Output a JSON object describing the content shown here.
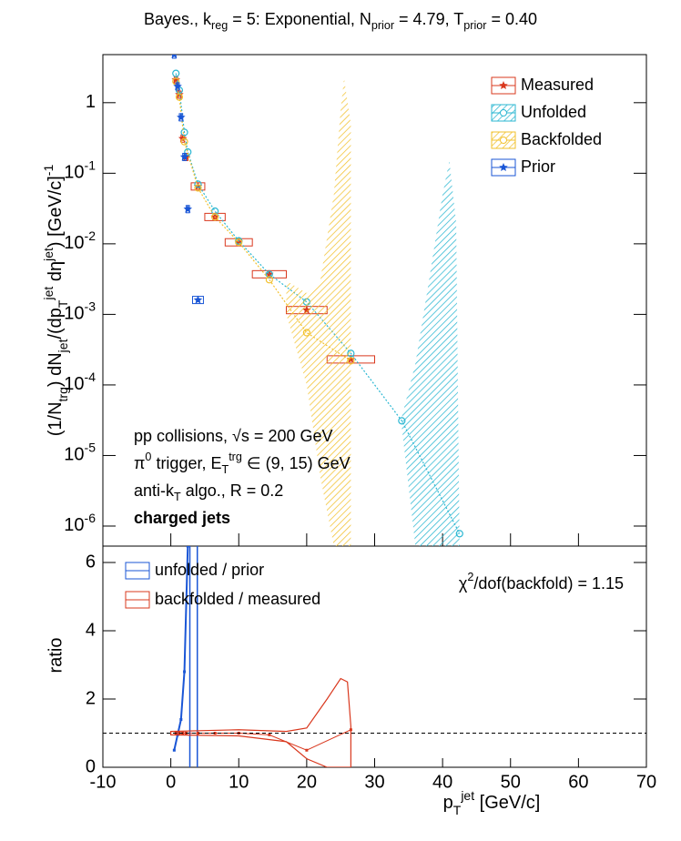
{
  "title_parts": [
    {
      "t": "Bayes., k"
    },
    {
      "t": "reg",
      "s": "sub"
    },
    {
      "t": " = 5: Exponential, N"
    },
    {
      "t": "prior",
      "s": "sub"
    },
    {
      "t": " = 4.79, T"
    },
    {
      "t": "prior",
      "s": "sub"
    },
    {
      "t": " = 0.40"
    }
  ],
  "chart_data": [
    {
      "type": "line",
      "y_scale": "log",
      "xlim": [
        -10,
        70
      ],
      "ylim": [
        5.2e-07,
        4.8
      ],
      "yticks": [
        {
          "value": 1e-06,
          "label": "10",
          "exp": "-6"
        },
        {
          "value": 1e-05,
          "label": "10",
          "exp": "-5"
        },
        {
          "value": 0.0001,
          "label": "10",
          "exp": "-4"
        },
        {
          "value": 0.001,
          "label": "10",
          "exp": "-3"
        },
        {
          "value": 0.01,
          "label": "10",
          "exp": "-2"
        },
        {
          "value": 0.1,
          "label": "10",
          "exp": "-1"
        },
        1
      ],
      "y_label_parts": [
        {
          "t": "(1/N"
        },
        {
          "t": "trg",
          "s": "sub"
        },
        {
          "t": ") dN"
        },
        {
          "t": "jet",
          "s": "sub"
        },
        {
          "t": "/(dp"
        },
        {
          "t": "T",
          "s": "sub"
        },
        {
          "t": "jet",
          "s": "sup"
        },
        {
          "t": " dη"
        },
        {
          "t": "jet",
          "s": "sup"
        },
        {
          "t": ") [GeV/c]"
        },
        {
          "t": "-1",
          "s": "sup"
        }
      ],
      "series": [
        {
          "name": "Measured",
          "color": "#d9381e",
          "marker": "star",
          "x": [
            0.75,
            1.25,
            1.75,
            2.25,
            4,
            6.5,
            10,
            14.5,
            20,
            26.5
          ],
          "xerr": [
            0.25,
            0.25,
            0.25,
            0.25,
            1,
            1.5,
            2,
            2.5,
            3,
            3.5
          ],
          "values": [
            2.1,
            1.3,
            0.31,
            0.17,
            0.065,
            0.024,
            0.0105,
            0.0037,
            0.00115,
            0.00023
          ]
        },
        {
          "name": "Unfolded",
          "color": "#2bb7d2",
          "marker": "circle",
          "x": [
            0.75,
            1.25,
            2,
            2.5,
            4,
            6.5,
            10,
            14.5,
            20,
            26.5,
            34,
            42.5
          ],
          "values": [
            2.6,
            1.5,
            0.38,
            0.2,
            0.07,
            0.029,
            0.011,
            0.0037,
            0.0015,
            0.00028,
            3.1e-05,
            7.8e-07
          ],
          "band": {
            "x": [
              34,
              36,
              38,
              40,
              41,
              42,
              42.5
            ],
            "high": [
              3.5e-05,
              0.0002,
              0.003,
              0.05,
              0.15,
              0.02,
              5.2e-07
            ],
            "low": [
              2.5e-05,
              5.2e-07,
              5.2e-07,
              5.2e-07,
              5.2e-07,
              5.2e-07,
              5.2e-07
            ]
          }
        },
        {
          "name": "Backfolded",
          "color": "#f2c12e",
          "marker": "circle",
          "x": [
            0.75,
            1.25,
            2,
            4,
            6.5,
            10,
            14.5,
            20,
            26.5
          ],
          "values": [
            2.0,
            1.2,
            0.28,
            0.062,
            0.024,
            0.0105,
            0.0031,
            0.00055,
            0.00022
          ],
          "band": {
            "x": [
              17,
              20,
              22,
              24,
              25,
              25.5,
              26.5
            ],
            "high": [
              0.003,
              0.002,
              0.003,
              0.05,
              0.8,
              2.2,
              0.5
            ],
            "low": [
              0.001,
              0.0001,
              5e-06,
              5.2e-07,
              5.2e-07,
              5.2e-07,
              5.2e-07
            ]
          }
        },
        {
          "name": "Prior",
          "color": "#1a56d6",
          "marker": "star",
          "x": [
            0.5,
            1,
            1.5,
            2,
            2.5,
            4
          ],
          "xerr": [
            0.25,
            0.25,
            0.25,
            0.25,
            0.25,
            0.8
          ],
          "values": [
            4.8,
            1.7,
            0.62,
            0.17,
            0.031,
            0.0016
          ]
        }
      ],
      "annotations": [
        [
          {
            "t": "pp collisions, √s = 200 GeV"
          }
        ],
        [
          {
            "t": "π"
          },
          {
            "t": "0",
            "s": "sup"
          },
          {
            "t": " trigger, E"
          },
          {
            "t": "T",
            "s": "sub"
          },
          {
            "t": "trg",
            "s": "sup"
          },
          {
            "t": " ∈ (9, 15) GeV"
          }
        ],
        [
          {
            "t": "anti-k"
          },
          {
            "t": "T",
            "s": "sub"
          },
          {
            "t": " algo., R = 0.2"
          }
        ],
        [
          {
            "t": "charged jets",
            "b": true
          }
        ]
      ]
    },
    {
      "type": "line",
      "xlim": [
        -10,
        70
      ],
      "ylim": [
        0,
        6.48
      ],
      "xticks": [
        -10,
        0,
        10,
        20,
        30,
        40,
        50,
        60,
        70
      ],
      "yticks": [
        0,
        2,
        4,
        6
      ],
      "y_label": "ratio",
      "x_label_parts": [
        {
          "t": "p"
        },
        {
          "t": "T",
          "s": "sub"
        },
        {
          "t": "jet",
          "s": "sup"
        },
        {
          "t": " [GeV/c]"
        }
      ],
      "reference_line": 1,
      "annotation_parts": [
        {
          "t": "χ"
        },
        {
          "t": "2",
          "s": "sup"
        },
        {
          "t": "/dof(backfold) = 1.15"
        }
      ],
      "series": [
        {
          "name": "unfolded / prior",
          "color": "#1a56d6",
          "x": [
            0.5,
            1,
            1.5,
            2,
            2.5
          ],
          "values": [
            0.5,
            0.95,
            1.4,
            2.8,
            6.48
          ],
          "error_bars": {
            "x": [
              2.8,
              3.9
            ],
            "low": [
              0,
              0
            ],
            "high": [
              6.48,
              6.48
            ]
          }
        },
        {
          "name": "backfolded / measured",
          "color": "#d9381e",
          "x": [
            0.75,
            1.25,
            1.75,
            2.25,
            4,
            6.5,
            10,
            14.5,
            20,
            26.5
          ],
          "values": [
            1,
            1,
            1,
            1,
            1,
            1,
            1,
            0.95,
            0.5,
            1.1
          ],
          "band": {
            "x": [
              0,
              10,
              17,
              20,
              23,
              25,
              26,
              26.5
            ],
            "high": [
              1.05,
              1.1,
              1.05,
              1.15,
              2,
              2.6,
              2.5,
              1.2
            ],
            "low": [
              0.95,
              0.92,
              0.75,
              0.25,
              0,
              0,
              0,
              0
            ]
          }
        }
      ]
    }
  ]
}
